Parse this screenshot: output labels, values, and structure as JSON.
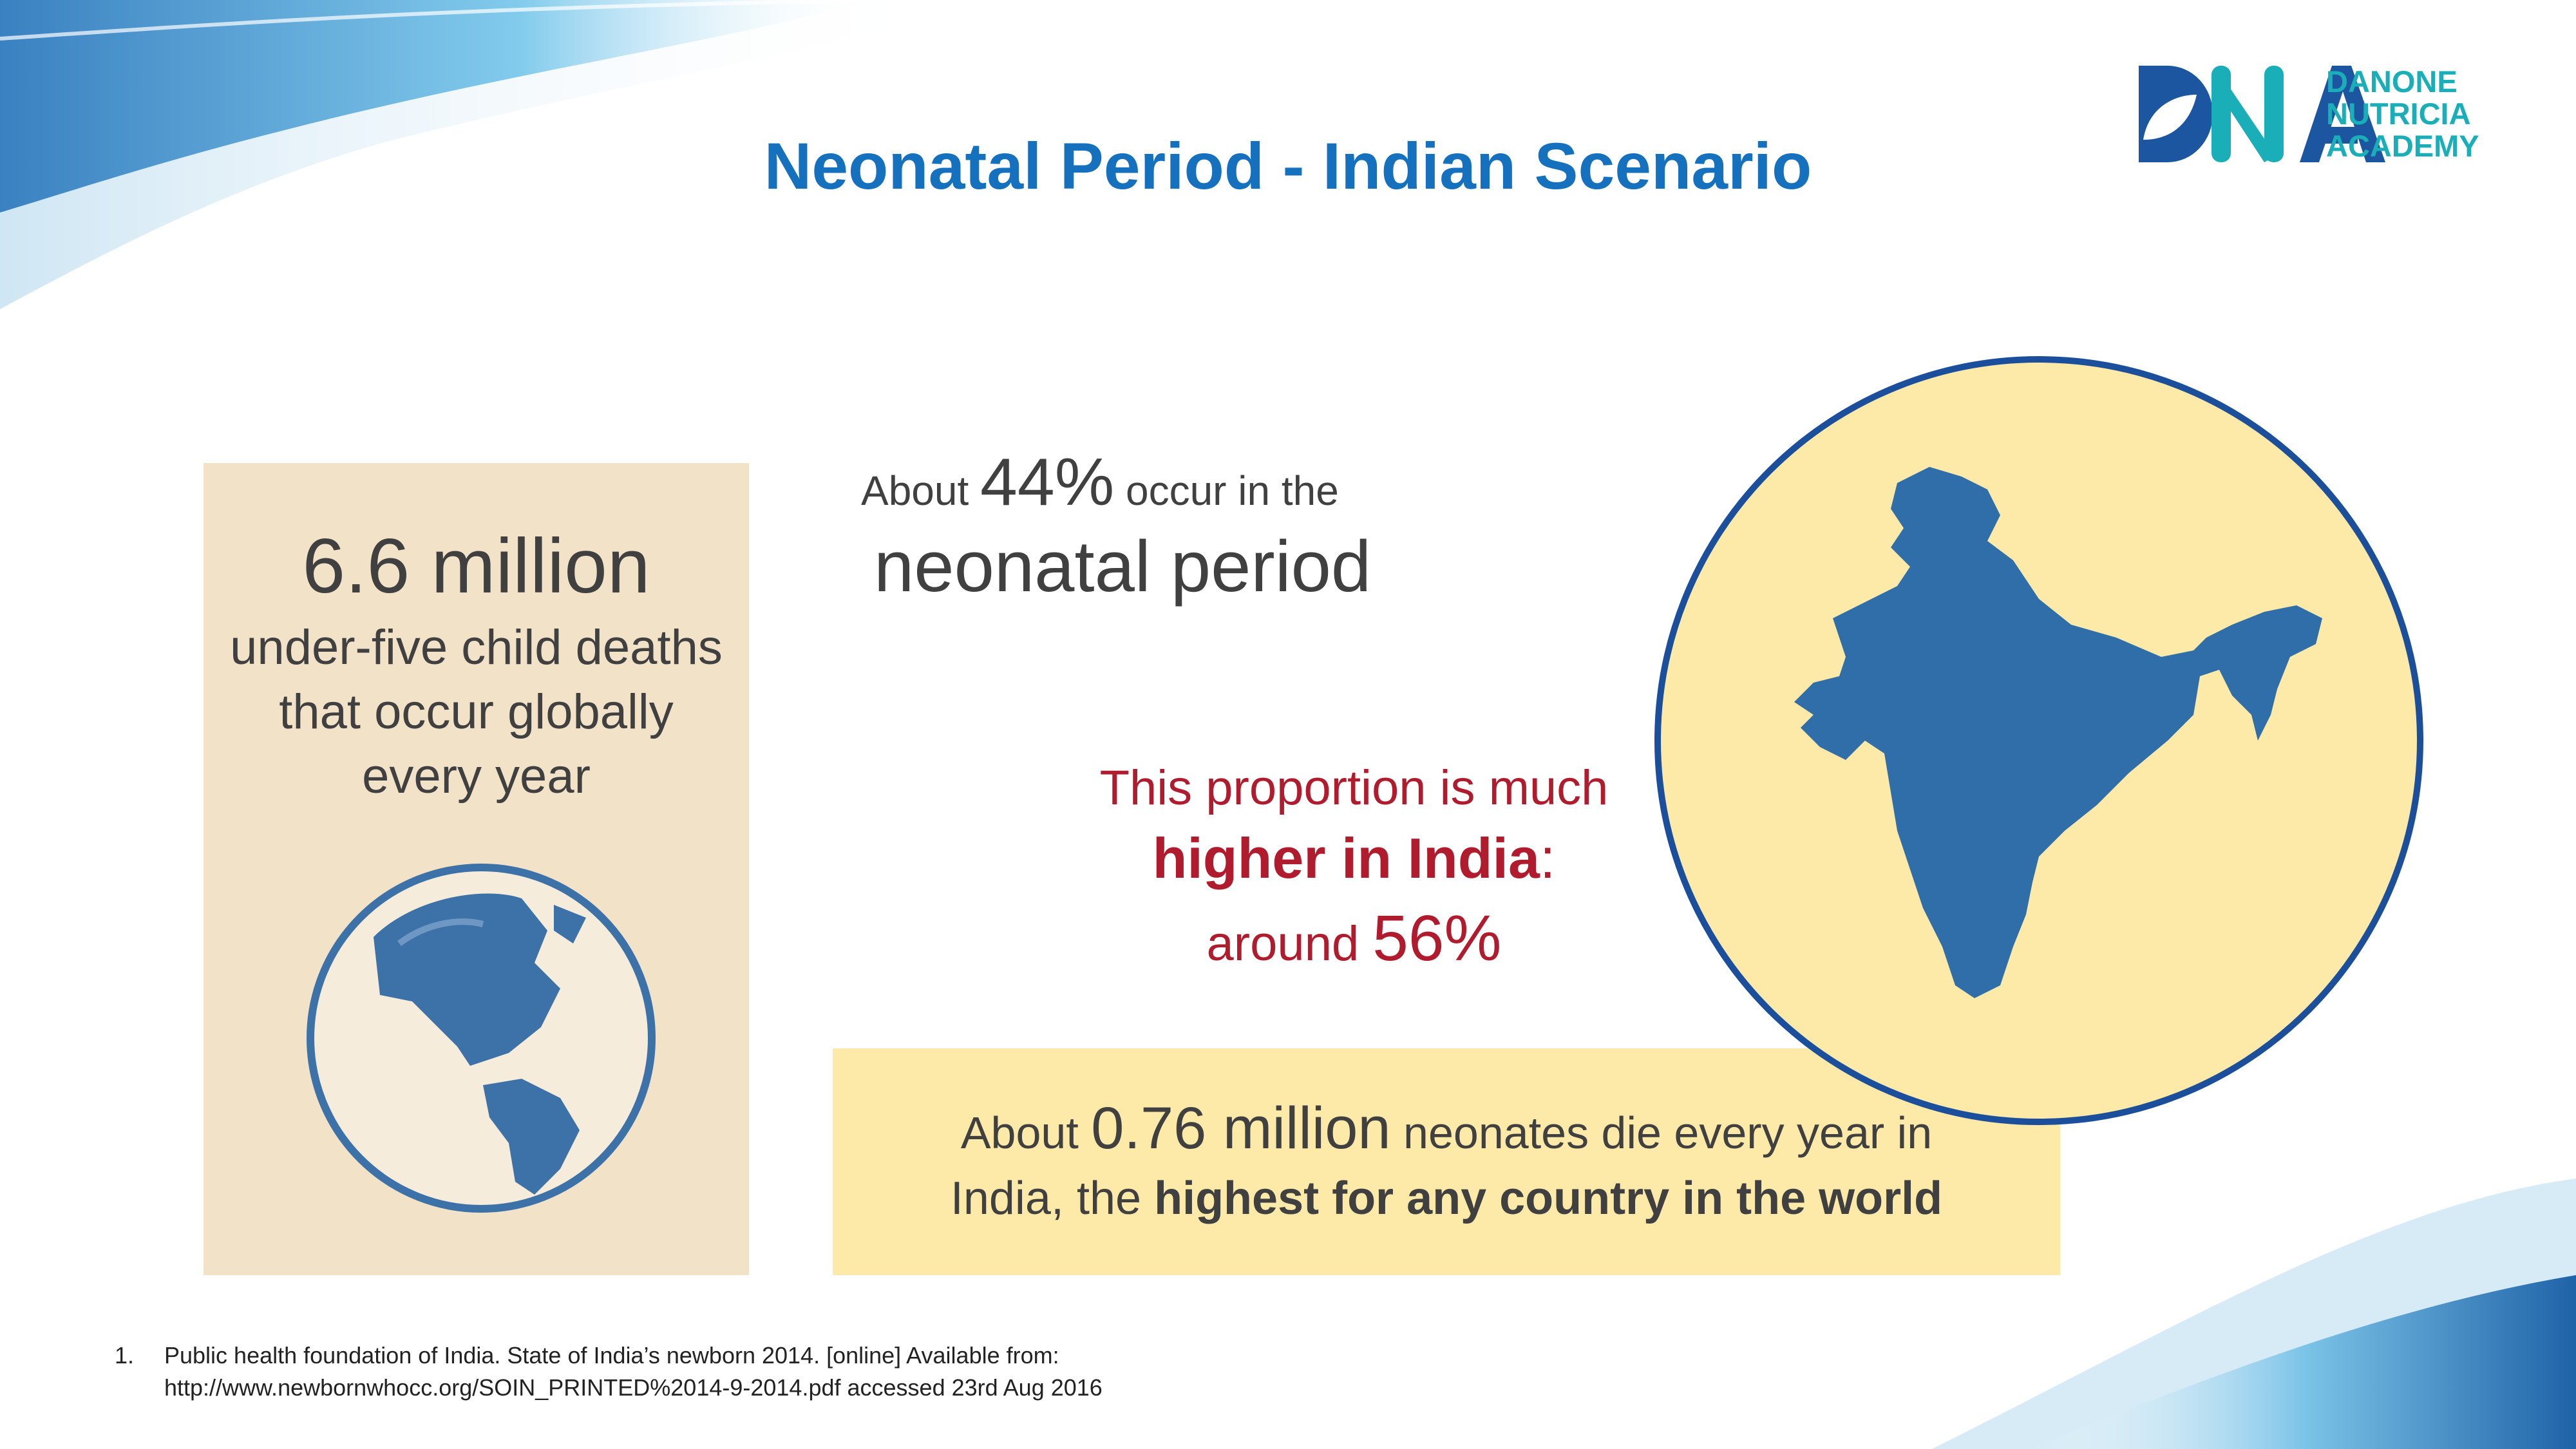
{
  "title": "Neonatal Period - Indian Scenario",
  "logo": {
    "letters": "DNA",
    "lines": [
      "DANONE",
      "NUTRICIA",
      "ACADEMY"
    ]
  },
  "left_box": {
    "headline": "6.6 million",
    "lines": [
      "under-five child deaths",
      "that occur globally",
      "every year"
    ]
  },
  "neonatal": {
    "prefix": "About ",
    "percent": "44%",
    "suffix": " occur in the",
    "line2": "neonatal period"
  },
  "india": {
    "line1": "This proportion is much",
    "line2_bold": "higher in India",
    "line2_tail": ":",
    "line3_prefix": "around ",
    "line3_value": "56%"
  },
  "bottom_box": {
    "prefix": "About ",
    "value": "0.76 million",
    "mid": " neonates die every year in",
    "line2_prefix": "India, the ",
    "line2_bold": "highest for any country in the world"
  },
  "footnote": {
    "number": "1.",
    "line1": "Public health foundation of India. State of India’s newborn 2014.  [online] Available from:",
    "line2": "http://www.newbornwhocc.org/SOIN_PRINTED%2014-9-2014.pdf  accessed 23rd Aug 2016"
  },
  "colors": {
    "title": "#1570be",
    "accent_red": "#b01c2e",
    "map": "#2f6ea8",
    "circle_fill": "#fde9a8",
    "left_box": "#f2e2c8"
  }
}
